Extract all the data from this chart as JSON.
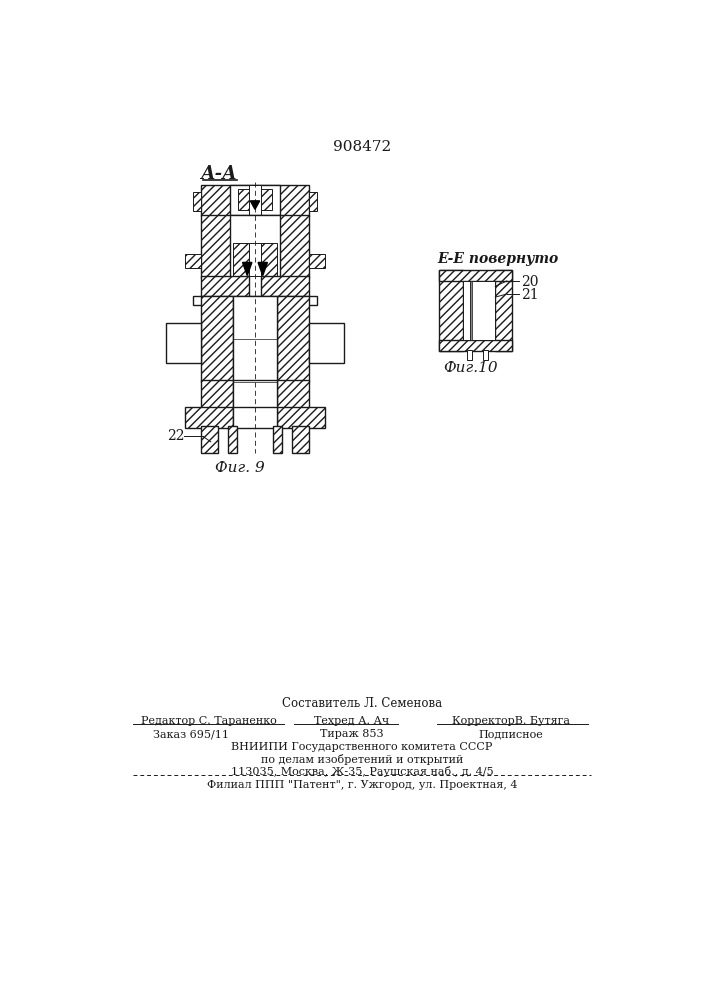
{
  "patent_number": "908472",
  "fig9_label": "А-А",
  "fig9_caption": "Фиг. 9",
  "fig10_label": "Е-Е повернуто",
  "fig10_caption": "Фиг.10",
  "label_22": "22",
  "label_20": "20",
  "label_21": "21",
  "footer_line1": "Составитель Л. Семенова",
  "footer_line2_1": "Редактор С. Тараненко",
  "footer_line2_2": "Техред А. Ач",
  "footer_line2_3": "КорректорВ. Бутяга",
  "footer_line3_1": "Заказ 695/11",
  "footer_line3_2": "Тираж 853",
  "footer_line3_3": "Подписное",
  "footer_line4": "ВНИИПИ Государственного комитета СССР",
  "footer_line5": "по делам изобретений и открытий",
  "footer_line6": "113035, Москва, Ж-35, Раушская наб., д. 4/5",
  "footer_line7": "Филиал ППП \"Патент\", г. Ужгород, ул. Проектная, 4",
  "bg_color": "#ffffff",
  "line_color": "#1a1a1a"
}
